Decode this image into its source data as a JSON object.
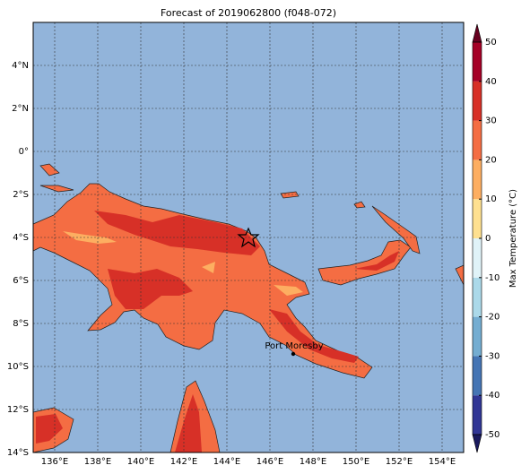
{
  "title": "Forecast of 2019062800 (f048-072)",
  "map": {
    "lonlim": [
      135,
      155
    ],
    "latlim": [
      -14,
      6
    ],
    "xticks": [
      {
        "value": 136,
        "label": "136°E"
      },
      {
        "value": 138,
        "label": "138°E"
      },
      {
        "value": 140,
        "label": "140°E"
      },
      {
        "value": 142,
        "label": "142°E"
      },
      {
        "value": 144,
        "label": "144°E"
      },
      {
        "value": 146,
        "label": "146°E"
      },
      {
        "value": 148,
        "label": "148°E"
      },
      {
        "value": 150,
        "label": "150°E"
      },
      {
        "value": 152,
        "label": "152°E"
      },
      {
        "value": 154,
        "label": "154°E"
      }
    ],
    "yticks": [
      {
        "value": 4,
        "label": "4°N"
      },
      {
        "value": 2,
        "label": "2°N"
      },
      {
        "value": 0,
        "label": "0°"
      },
      {
        "value": -2,
        "label": "2°S"
      },
      {
        "value": -4,
        "label": "4°S"
      },
      {
        "value": -6,
        "label": "6°S"
      },
      {
        "value": -8,
        "label": "8°S"
      },
      {
        "value": -10,
        "label": "10°S"
      },
      {
        "value": -12,
        "label": "12°S"
      },
      {
        "value": -14,
        "label": "14°S"
      }
    ],
    "annotation": "Port Moresby"
  },
  "colorbar": {
    "label": "Max Temperature (°C)",
    "lim": [
      -50,
      50
    ],
    "ticks": [
      -50,
      -40,
      -30,
      -20,
      -10,
      0,
      10,
      20,
      30,
      40,
      50
    ],
    "colors": [
      "#313695",
      "#4575b4",
      "#74add1",
      "#abd9e9",
      "#e0f3f8",
      "#fee090",
      "#fdae61",
      "#f46d43",
      "#d73027",
      "#a50026"
    ],
    "extend_low": "#1a1a5e",
    "extend_high": "#67001f"
  }
}
